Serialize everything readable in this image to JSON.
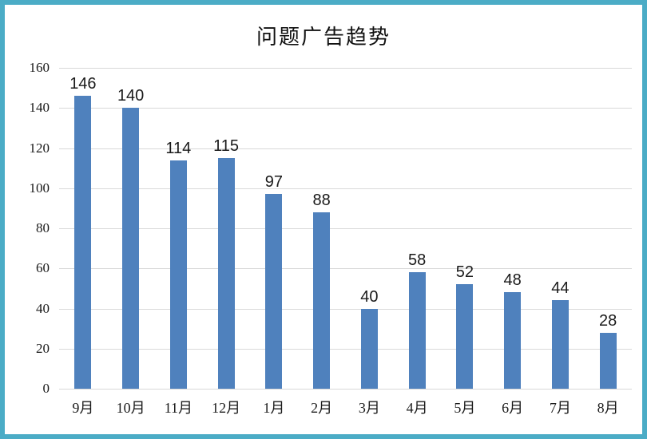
{
  "chart_data": {
    "type": "bar",
    "title": "问题广告趋势",
    "categories": [
      "9月",
      "10月",
      "11月",
      "12月",
      "1月",
      "2月",
      "3月",
      "4月",
      "5月",
      "6月",
      "7月",
      "8月"
    ],
    "values": [
      146,
      140,
      114,
      115,
      97,
      88,
      40,
      58,
      52,
      48,
      44,
      28
    ],
    "xlabel": "",
    "ylabel": "",
    "ylim": [
      0,
      160
    ],
    "yticks": [
      0,
      20,
      40,
      60,
      80,
      100,
      120,
      140,
      160
    ],
    "grid": "horizontal",
    "legend": "none",
    "data_labels": "above bars",
    "colors": {
      "bar": "#4F81BD",
      "gridline": "#D9D9D9",
      "frame_border": "#4BACC6",
      "text": "#1a1a1a"
    }
  }
}
